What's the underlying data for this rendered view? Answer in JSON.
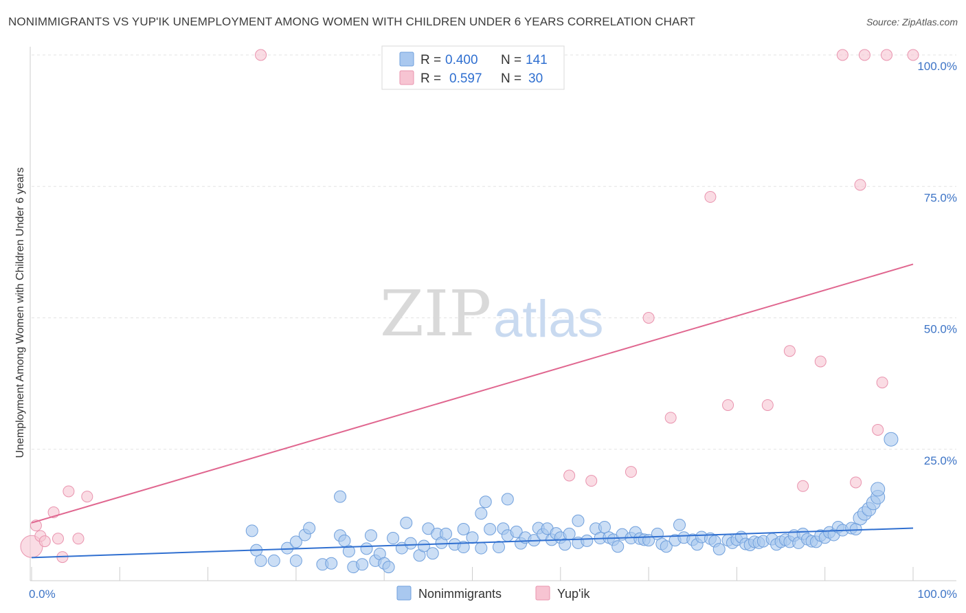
{
  "title": "NONIMMIGRANTS VS YUP'IK UNEMPLOYMENT AMONG WOMEN WITH CHILDREN UNDER 6 YEARS CORRELATION CHART",
  "source": "Source: ZipAtlas.com",
  "watermark": {
    "zip": "ZIP",
    "atlas": "atlas"
  },
  "legend_top": {
    "r_label": "R =",
    "n_label": "N =",
    "rows": [
      {
        "r": "0.400",
        "n": "141"
      },
      {
        "r": "0.597",
        "n": "30"
      }
    ]
  },
  "colors": {
    "blue_fill": "#a9c8ef",
    "blue_stroke": "#6f9fdc",
    "blue_line": "#2f6fd0",
    "pink_fill": "#f7c4d2",
    "pink_stroke": "#e993ae",
    "pink_line": "#e0668f",
    "value_text": "#2f6fd0"
  },
  "chart_data": {
    "type": "scatter",
    "title": "NONIMMIGRANTS VS YUP'IK UNEMPLOYMENT AMONG WOMEN WITH CHILDREN UNDER 6 YEARS CORRELATION CHART",
    "xlabel": "",
    "ylabel": "Unemployment Among Women with Children Under 6 years",
    "xlim": [
      0,
      100
    ],
    "ylim": [
      0,
      100
    ],
    "x_tick_labels": [
      "0.0%",
      "100.0%"
    ],
    "y_tick_labels": [
      "25.0%",
      "50.0%",
      "75.0%",
      "100.0%"
    ],
    "y_ticks": [
      25,
      50,
      75,
      100
    ],
    "grid": true,
    "legend": [
      "Nonimmigrants",
      "Yup'ik"
    ],
    "series": [
      {
        "name": "Nonimmigrants",
        "trend": [
          [
            0,
            4.4
          ],
          [
            100,
            10.0
          ]
        ],
        "points": [
          [
            25,
            9.5
          ],
          [
            25.5,
            5.8
          ],
          [
            26,
            3.8
          ],
          [
            27.5,
            3.8
          ],
          [
            29,
            6.2
          ],
          [
            30,
            7.4
          ],
          [
            30,
            3.8
          ],
          [
            31,
            8.7
          ],
          [
            31.5,
            10
          ],
          [
            33,
            3.1
          ],
          [
            34,
            3.3
          ],
          [
            35,
            16
          ],
          [
            35,
            8.6
          ],
          [
            35.5,
            7.6
          ],
          [
            36,
            5.6
          ],
          [
            36.5,
            2.6
          ],
          [
            37.5,
            3.1
          ],
          [
            38,
            6.1
          ],
          [
            38.5,
            8.6
          ],
          [
            39,
            3.8
          ],
          [
            39.5,
            5.1
          ],
          [
            40,
            3.3
          ],
          [
            40.5,
            2.6
          ],
          [
            41,
            8.1
          ],
          [
            42,
            6.2
          ],
          [
            42.5,
            11
          ],
          [
            43,
            7.1
          ],
          [
            44,
            4.8
          ],
          [
            44.5,
            6.6
          ],
          [
            45,
            9.9
          ],
          [
            45.5,
            5.2
          ],
          [
            46,
            8.9
          ],
          [
            46.5,
            7.2
          ],
          [
            47,
            8.9
          ],
          [
            48,
            6.9
          ],
          [
            49,
            6.4
          ],
          [
            49,
            9.8
          ],
          [
            50,
            8.2
          ],
          [
            51,
            6.2
          ],
          [
            51,
            12.8
          ],
          [
            51.5,
            15
          ],
          [
            52,
            9.8
          ],
          [
            53,
            6.4
          ],
          [
            53.5,
            9.9
          ],
          [
            54,
            15.5
          ],
          [
            54,
            8.6
          ],
          [
            55,
            9.3
          ],
          [
            55.5,
            7.1
          ],
          [
            56,
            8.2
          ],
          [
            57,
            7.7
          ],
          [
            57.5,
            10
          ],
          [
            58,
            8.8
          ],
          [
            58.5,
            9.9
          ],
          [
            59,
            7.8
          ],
          [
            59.5,
            9
          ],
          [
            60,
            8.2
          ],
          [
            60.5,
            6.9
          ],
          [
            61,
            8.9
          ],
          [
            62,
            7.2
          ],
          [
            62,
            11.4
          ],
          [
            63,
            7.6
          ],
          [
            64,
            9.9
          ],
          [
            64.5,
            8.1
          ],
          [
            65,
            10.2
          ],
          [
            65.5,
            8.2
          ],
          [
            66,
            7.8
          ],
          [
            66.5,
            6.5
          ],
          [
            67,
            8.8
          ],
          [
            68,
            8.1
          ],
          [
            68.5,
            9.2
          ],
          [
            69,
            8
          ],
          [
            69.5,
            7.8
          ],
          [
            70,
            7.7
          ],
          [
            71,
            8.9
          ],
          [
            71.5,
            7
          ],
          [
            72,
            6.5
          ],
          [
            73,
            7.7
          ],
          [
            73.5,
            10.6
          ],
          [
            74,
            8.2
          ],
          [
            75,
            7.8
          ],
          [
            75.5,
            6.9
          ],
          [
            76,
            8.3
          ],
          [
            77,
            8
          ],
          [
            77.5,
            7.5
          ],
          [
            78,
            6
          ],
          [
            79,
            7.7
          ],
          [
            79.5,
            7.2
          ],
          [
            80,
            7.8
          ],
          [
            80.5,
            8.3
          ],
          [
            81,
            7
          ],
          [
            81.5,
            6.8
          ],
          [
            82,
            7.4
          ],
          [
            82.5,
            7.2
          ],
          [
            83,
            7.5
          ],
          [
            84,
            7.9
          ],
          [
            84.5,
            6.9
          ],
          [
            85,
            7.4
          ],
          [
            85.5,
            7.8
          ],
          [
            86,
            7.4
          ],
          [
            86.5,
            8.6
          ],
          [
            87,
            7.2
          ],
          [
            87.5,
            8.9
          ],
          [
            88,
            7.9
          ],
          [
            88.5,
            7.5
          ],
          [
            89,
            7.4
          ],
          [
            89.5,
            8.6
          ],
          [
            90,
            8.2
          ],
          [
            90.5,
            9.2
          ],
          [
            91,
            8.7
          ],
          [
            91.5,
            10.2
          ],
          [
            92,
            9.6
          ],
          [
            93,
            10
          ],
          [
            93.5,
            9.8
          ],
          [
            94,
            11.9
          ],
          [
            94.5,
            12.8
          ],
          [
            95,
            13.6
          ],
          [
            95.5,
            14.8
          ],
          [
            96,
            15.9
          ],
          [
            96,
            17.4
          ],
          [
            97.5,
            26.9
          ]
        ]
      },
      {
        "name": "Yup'ik",
        "trend": [
          [
            0,
            11.0
          ],
          [
            100,
            60.2
          ]
        ],
        "points": [
          [
            0,
            6.5
          ],
          [
            0.5,
            10.5
          ],
          [
            1,
            8.5
          ],
          [
            1.5,
            7.5
          ],
          [
            2.5,
            13
          ],
          [
            3,
            8
          ],
          [
            3.5,
            4.5
          ],
          [
            4.2,
            17
          ],
          [
            5.3,
            8
          ],
          [
            6.3,
            16
          ],
          [
            26,
            100
          ],
          [
            61,
            20
          ],
          [
            63.5,
            19
          ],
          [
            68,
            20.7
          ],
          [
            70,
            50
          ],
          [
            72.5,
            31
          ],
          [
            77,
            73
          ],
          [
            79,
            33.4
          ],
          [
            83.5,
            33.4
          ],
          [
            86,
            43.7
          ],
          [
            87.5,
            18
          ],
          [
            89.5,
            41.7
          ],
          [
            92,
            100
          ],
          [
            93.5,
            18.7
          ],
          [
            94,
            75.3
          ],
          [
            94.5,
            100
          ],
          [
            96,
            28.7
          ],
          [
            96.5,
            37.7
          ],
          [
            97,
            100
          ],
          [
            100,
            100
          ]
        ]
      }
    ]
  }
}
